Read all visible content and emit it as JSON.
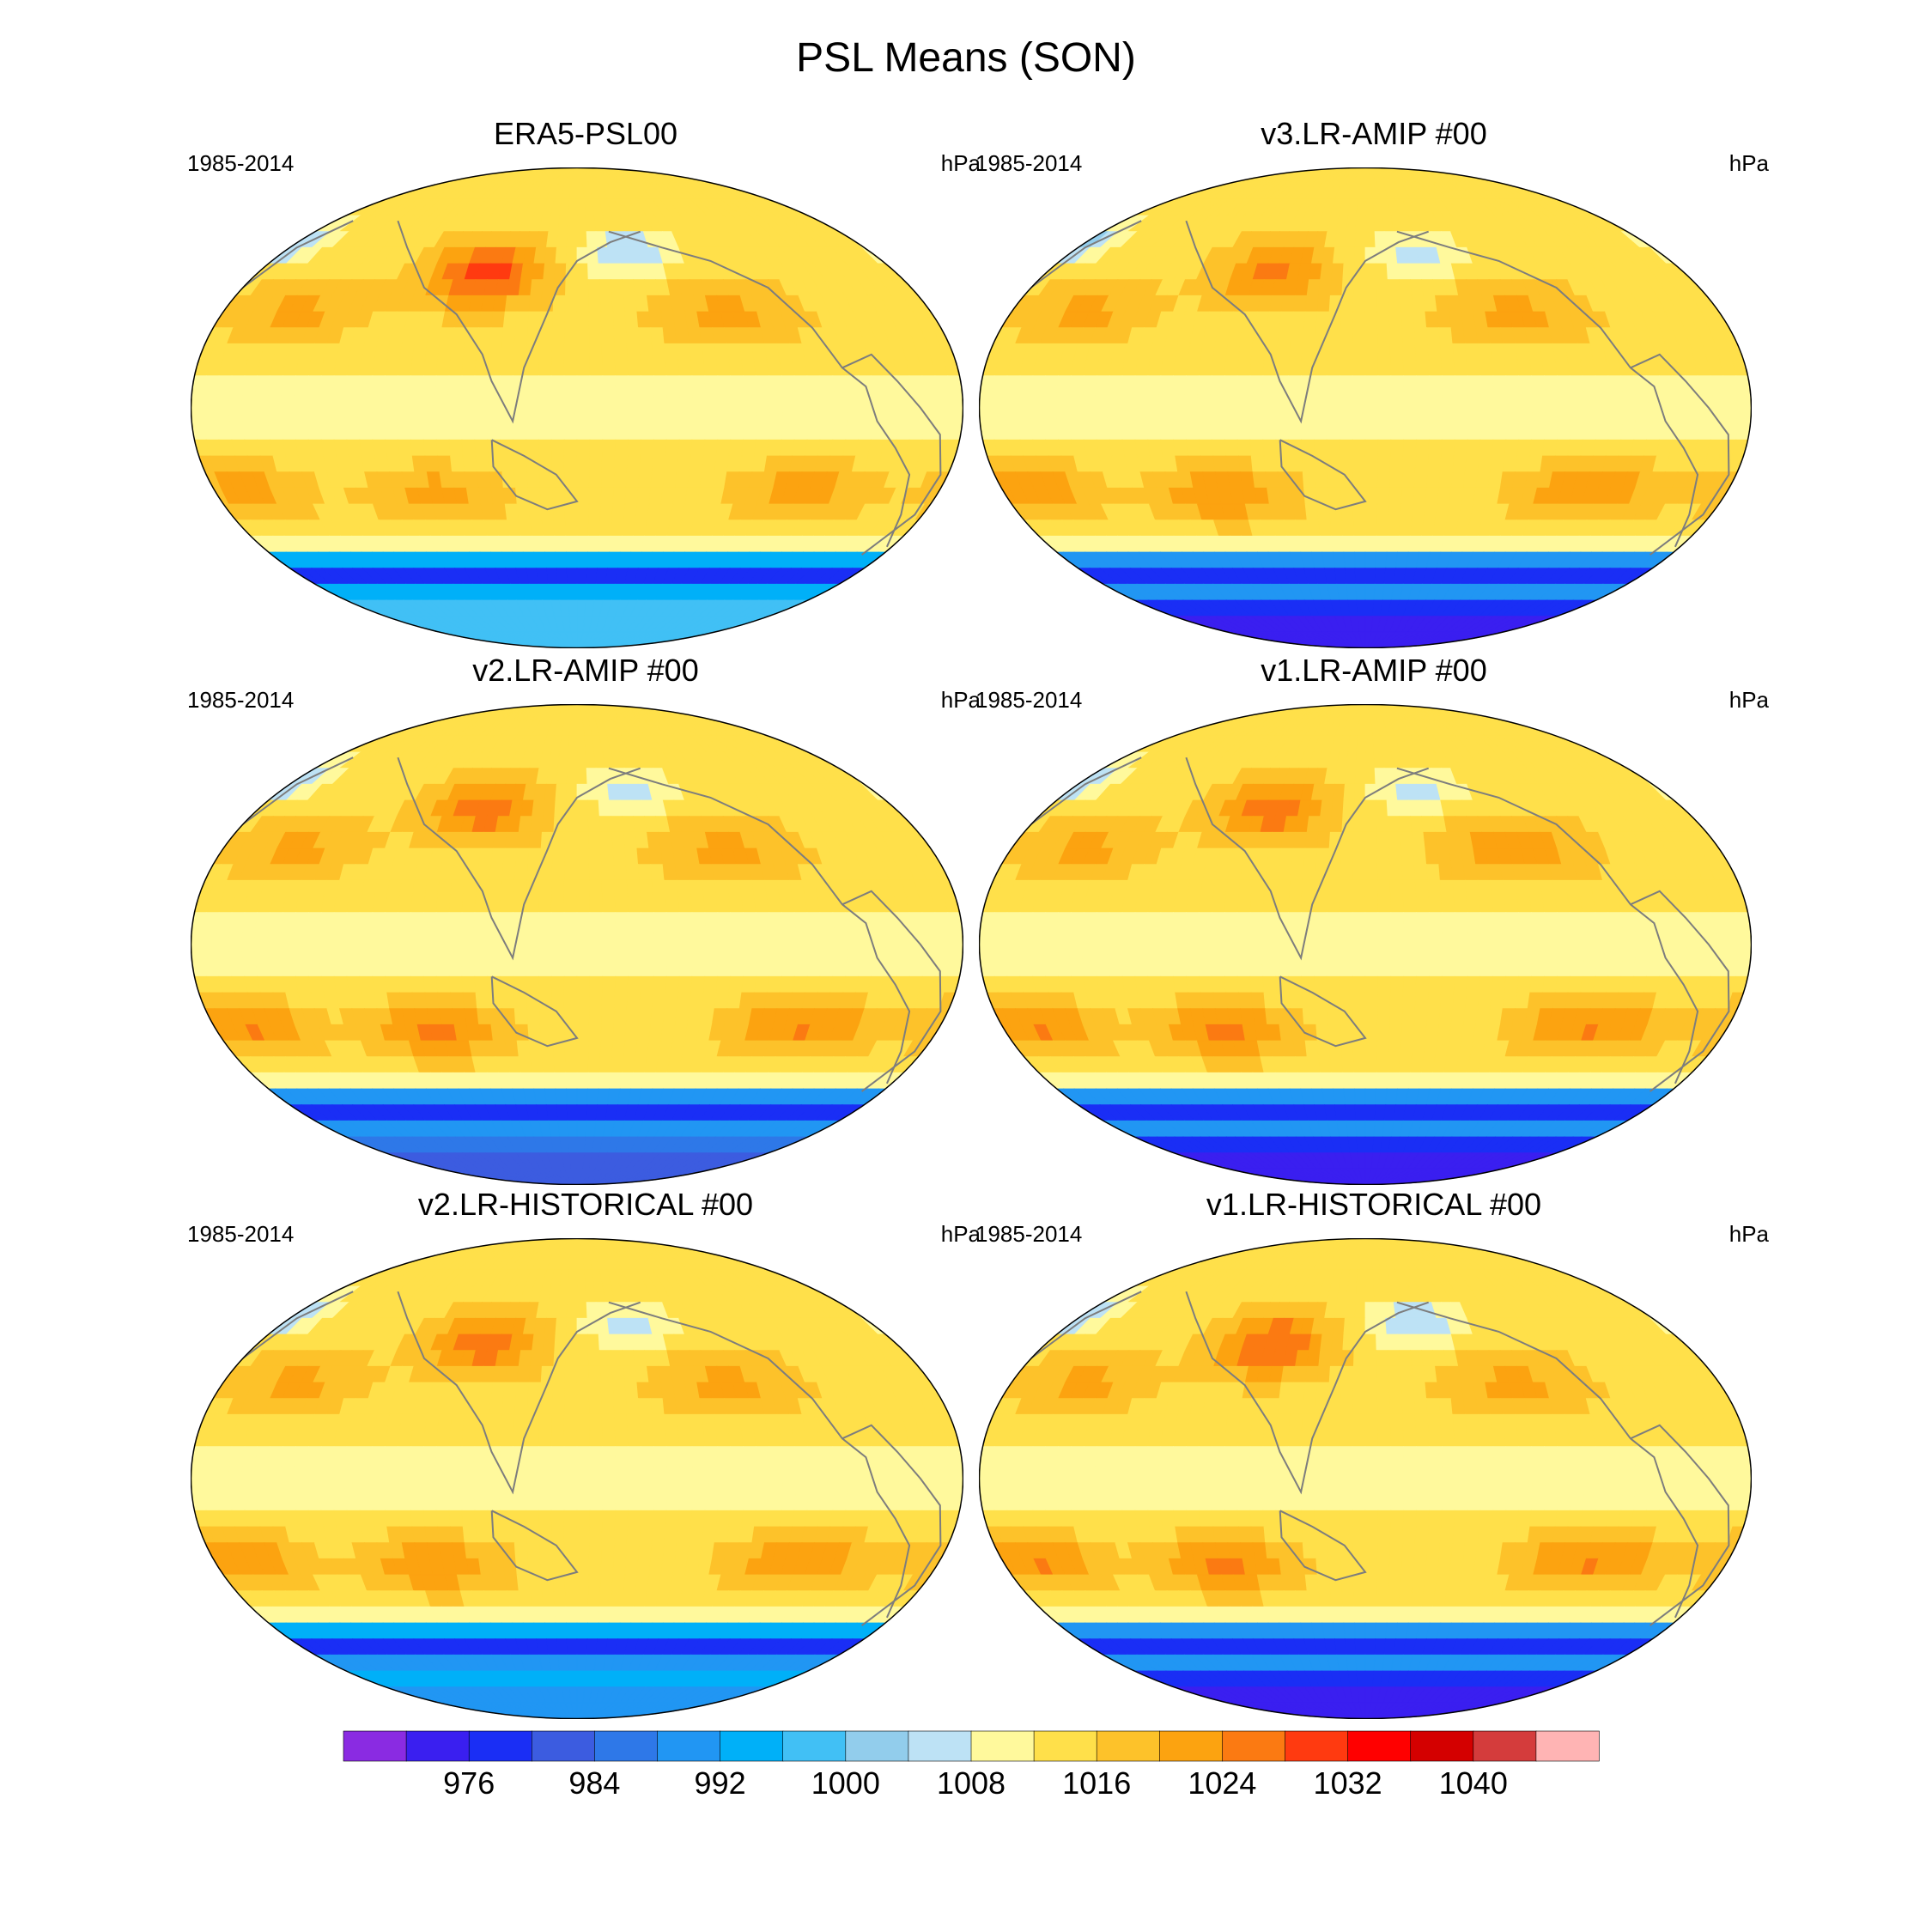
{
  "chart_data": {
    "type": "heatmap",
    "title": "PSL Means (SON)",
    "projection": "robinson-like, Pacific-centered",
    "panels": [
      {
        "title": "ERA5-PSL00",
        "period": "1985-2014",
        "units": "hPa",
        "features": {
          "siberian_high": 1030,
          "aleutian_low": 1004,
          "icelandic_low": 1004,
          "pacific_subtropical_high": 1021,
          "atlantic_subtropical_high": 1021,
          "south_pacific_high": 1022,
          "south_atlantic_high": 1022,
          "indian_ocean_high": 1022,
          "tropical_trough": 1011,
          "southern_ocean_trough": 978,
          "antarctic_interior": 996
        }
      },
      {
        "title": "v3.LR-AMIP  #00",
        "period": "1985-2014",
        "units": "hPa",
        "features": {
          "siberian_high": 1025,
          "aleutian_low": 1006,
          "icelandic_low": 1003,
          "pacific_subtropical_high": 1021,
          "atlantic_subtropical_high": 1021,
          "south_pacific_high": 1024,
          "south_atlantic_high": 1024,
          "indian_ocean_high": 1024,
          "tropical_trough": 1011,
          "southern_ocean_trough": 976,
          "antarctic_interior": 974
        }
      },
      {
        "title": "v2.LR-AMIP  #00",
        "period": "1985-2014",
        "units": "hPa",
        "features": {
          "siberian_high": 1026,
          "aleutian_low": 1006,
          "icelandic_low": 1004,
          "pacific_subtropical_high": 1021,
          "atlantic_subtropical_high": 1021,
          "south_pacific_high": 1025,
          "south_atlantic_high": 1025,
          "indian_ocean_high": 1025,
          "tropical_trough": 1011,
          "southern_ocean_trough": 976,
          "antarctic_interior": 982
        }
      },
      {
        "title": "v1.LR-AMIP  #00",
        "period": "1985-2014",
        "units": "hPa",
        "features": {
          "siberian_high": 1026,
          "aleutian_low": 1006,
          "icelandic_low": 1004,
          "pacific_subtropical_high": 1023,
          "atlantic_subtropical_high": 1021,
          "south_pacific_high": 1025,
          "south_atlantic_high": 1025,
          "indian_ocean_high": 1025,
          "tropical_trough": 1011,
          "southern_ocean_trough": 976,
          "antarctic_interior": 972
        }
      },
      {
        "title": "v2.LR-HISTORICAL  #00",
        "period": "1985-2014",
        "units": "hPa",
        "features": {
          "siberian_high": 1026,
          "aleutian_low": 1006,
          "icelandic_low": 1004,
          "pacific_subtropical_high": 1021,
          "atlantic_subtropical_high": 1021,
          "south_pacific_high": 1024,
          "south_atlantic_high": 1024,
          "indian_ocean_high": 1024,
          "tropical_trough": 1011,
          "southern_ocean_trough": 978,
          "antarctic_interior": 990
        }
      },
      {
        "title": "v1.LR-HISTORICAL  #00",
        "period": "1985-2014",
        "units": "hPa",
        "features": {
          "siberian_high": 1028,
          "aleutian_low": 1004,
          "icelandic_low": 1004,
          "pacific_subtropical_high": 1021,
          "atlantic_subtropical_high": 1021,
          "south_pacific_high": 1025,
          "south_atlantic_high": 1025,
          "indian_ocean_high": 1025,
          "tropical_trough": 1011,
          "southern_ocean_trough": 976,
          "antarctic_interior": 974
        }
      }
    ],
    "colorbar": {
      "levels": [
        972,
        976,
        980,
        984,
        988,
        992,
        996,
        1000,
        1004,
        1008,
        1012,
        1016,
        1020,
        1024,
        1028,
        1032,
        1036,
        1040,
        1044
      ],
      "tick_labels": [
        "976",
        "984",
        "992",
        "1000",
        "1008",
        "1016",
        "1024",
        "1032",
        "1040"
      ],
      "tick_values": [
        976,
        984,
        992,
        1000,
        1008,
        1016,
        1024,
        1032,
        1040
      ],
      "colors": [
        "#8a2be2",
        "#3a1ff0",
        "#1a2ef5",
        "#3c5ce0",
        "#2e78e8",
        "#2196f3",
        "#00b0f8",
        "#41c0f5",
        "#92cdec",
        "#bde2f5",
        "#fff99c",
        "#ffe04a",
        "#fdc22a",
        "#fca310",
        "#fb7a12",
        "#ff3a10",
        "#ff0000",
        "#d40000",
        "#d43c3c",
        "#ffb4b4"
      ]
    }
  }
}
